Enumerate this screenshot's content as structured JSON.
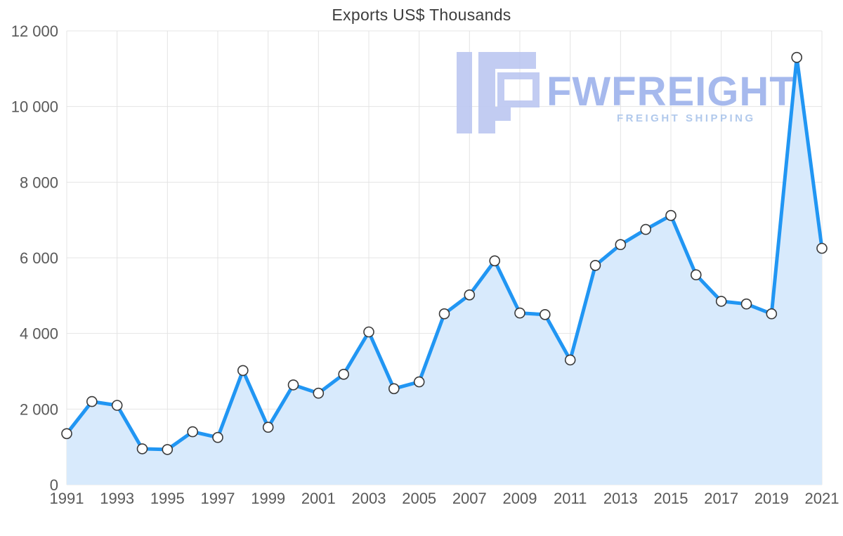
{
  "chart_data": {
    "type": "area",
    "title": "Exports US$ Thousands",
    "xlabel": "",
    "ylabel": "",
    "x": [
      1991,
      1992,
      1993,
      1994,
      1995,
      1996,
      1997,
      1998,
      1999,
      2000,
      2001,
      2002,
      2003,
      2004,
      2005,
      2006,
      2007,
      2008,
      2009,
      2010,
      2011,
      2012,
      2013,
      2014,
      2015,
      2016,
      2017,
      2018,
      2019,
      2020,
      2021
    ],
    "values": [
      1350,
      2200,
      2100,
      950,
      930,
      1400,
      1250,
      3020,
      1520,
      2640,
      2420,
      2920,
      4040,
      2540,
      2720,
      4520,
      5020,
      5920,
      4540,
      4500,
      3300,
      5800,
      6350,
      6750,
      7120,
      5550,
      4850,
      4780,
      4520,
      11300,
      6250
    ],
    "ylim": [
      0,
      12000
    ],
    "grid": true,
    "legend": false,
    "y_ticks": {
      "values": [
        0,
        2000,
        4000,
        6000,
        8000,
        10000,
        12000
      ],
      "labels": [
        "0",
        "2 000",
        "4 000",
        "6 000",
        "8 000",
        "10 000",
        "12 000"
      ]
    },
    "x_tick_step": 2,
    "x_tick_labels": [
      "1991",
      "1993",
      "1995",
      "1997",
      "1999",
      "2001",
      "2003",
      "2005",
      "2007",
      "2009",
      "2011",
      "2013",
      "2015",
      "2017",
      "2019",
      "2021"
    ],
    "colors": {
      "line": "#2196f3",
      "area": "#d8eafc",
      "marker_fill": "#ffffff",
      "marker_stroke": "#3a3a3a",
      "grid": "#e4e4e4",
      "axis_text": "#595959",
      "title_text": "#3d3d3d"
    }
  },
  "watermark": {
    "brand": "FWFREIGHT",
    "tagline": "FREIGHT SHIPPING",
    "logo_icon": "fwfreight-logo-icon",
    "colors": {
      "mark": "#bcc7f1",
      "brand_text": "#9db2ec",
      "tagline_text": "#a9c4ea"
    }
  }
}
